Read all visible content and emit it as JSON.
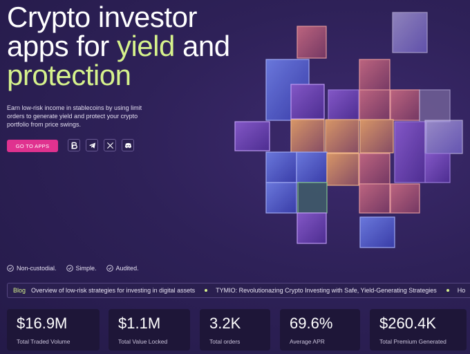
{
  "hero": {
    "title_line1": "Crypto investor",
    "title_line2_a": "apps for ",
    "title_line2_accent": "yield",
    "title_line2_b": " and",
    "title_line3_accent": "protection",
    "description": "Earn low-risk income in stablecoins by using limit orders to generate yield and protect your crypto portfolio from price swings.",
    "cta_label": "GO TO APPS",
    "colors": {
      "accent": "#d6f28c",
      "cta": "#e0328f",
      "background": "#2e2158"
    }
  },
  "socials": [
    {
      "name": "bybit-icon"
    },
    {
      "name": "telegram-icon"
    },
    {
      "name": "x-icon"
    },
    {
      "name": "discord-icon"
    }
  ],
  "features": [
    "Non-custodial.",
    "Simple.",
    "Audited."
  ],
  "ticker": {
    "tag": "Blog",
    "items": [
      "Overview of low-risk strategies for investing in digital assets",
      "TYMIO: Revolutionazing Crypto Investing with Safe, Yield-Generating Strategies",
      "Ho"
    ]
  },
  "stats": [
    {
      "value": "$16.9M",
      "label": "Total Traded Volume"
    },
    {
      "value": "$1.1M",
      "label": "Total Value Locked"
    },
    {
      "value": "3.2K",
      "label": "Total orders"
    },
    {
      "value": "69.6%",
      "label": "Average APR"
    },
    {
      "value": "$260.4K",
      "label": "Total Premium Generated"
    }
  ]
}
